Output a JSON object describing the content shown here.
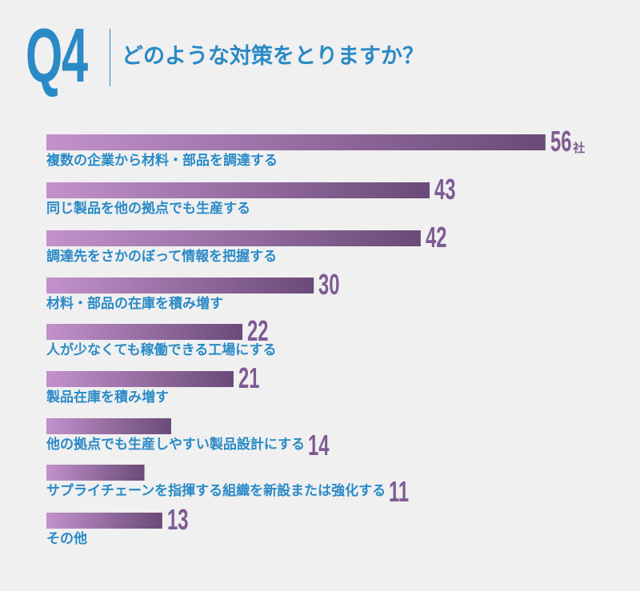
{
  "header": {
    "q_label": "Q4",
    "question": "どのような対策をとりますか？"
  },
  "colors": {
    "accent_blue": "#2a8ac6",
    "bar_light": "#c391cc",
    "bar_dark": "#6a4a78",
    "value_text": "#7e5b93"
  },
  "chart_data": {
    "type": "bar",
    "orientation": "horizontal",
    "unit": "社",
    "categories": [
      "複数の企業から材料・部品を調達する",
      "同じ製品を他の拠点でも生産する",
      "調達先をさかのぼって情報を把握する",
      "材料・部品の在庫を積み増す",
      "人が少なくても稼働できる工場にする",
      "製品在庫を積み増す",
      "他の拠点でも生産しやすい製品設計にする",
      "サプライチェーンを指揮する組織を新設または強化する",
      "その他"
    ],
    "values": [
      56,
      43,
      42,
      30,
      22,
      21,
      14,
      11,
      13
    ]
  }
}
